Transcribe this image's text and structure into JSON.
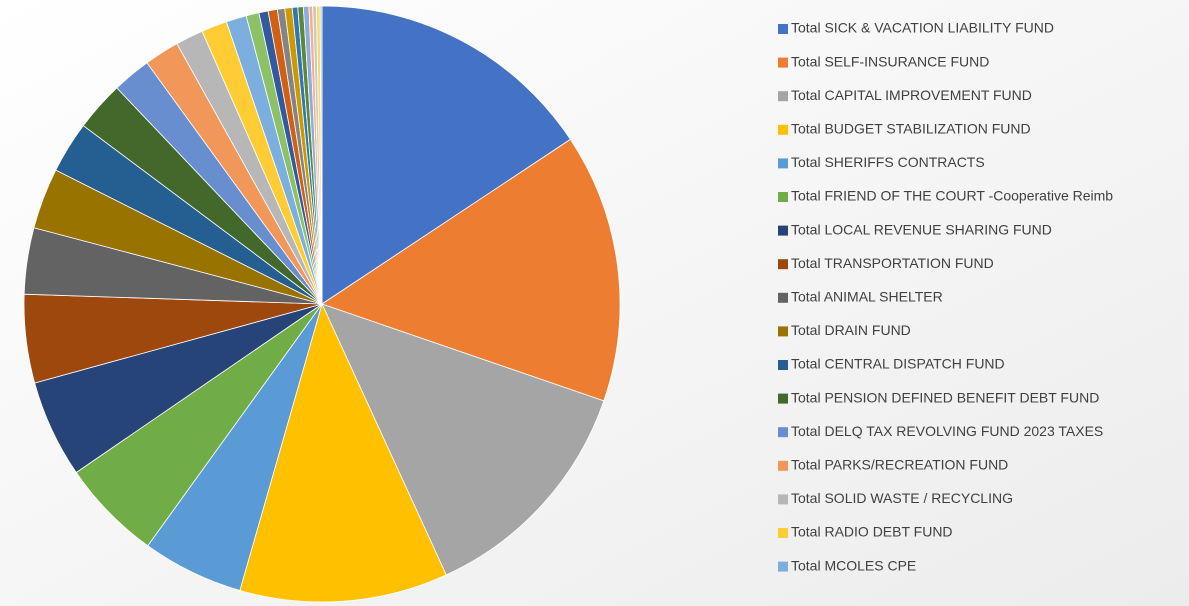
{
  "chart_data": {
    "type": "pie",
    "categories": [
      "Total SICK & VACATION LIABILITY FUND",
      "Total SELF-INSURANCE FUND",
      "Total CAPITAL IMPROVEMENT FUND",
      "Total BUDGET STABILIZATION FUND",
      "Total SHERIFFS CONTRACTS",
      "Total FRIEND OF THE COURT -Cooperative Reimb",
      "Total LOCAL REVENUE SHARING FUND",
      "Total TRANSPORTATION FUND",
      "Total ANIMAL SHELTER",
      "Total DRAIN FUND",
      "Total CENTRAL DISPATCH FUND",
      "Total PENSION DEFINED BENEFIT DEBT FUND",
      "Total DELQ TAX REVOLVING FUND 2023 TAXES",
      "Total PARKS/RECREATION FUND",
      "Total SOLID WASTE / RECYCLING",
      "Total RADIO DEBT FUND",
      "Total MCOLES CPE",
      null,
      null,
      null,
      null,
      null,
      null,
      null,
      null,
      null,
      null,
      null,
      null
    ],
    "values": [
      15.7,
      14.6,
      12.9,
      11.3,
      5.5,
      5.5,
      5.3,
      4.8,
      3.6,
      3.3,
      2.8,
      2.7,
      2.1,
      1.9,
      1.5,
      1.4,
      1.1,
      0.7,
      0.5,
      0.5,
      0.4,
      0.4,
      0.3,
      0.3,
      0.3,
      0.2,
      0.2,
      0.2,
      0.1
    ],
    "colors": [
      "#4472c4",
      "#ed7d31",
      "#a5a5a5",
      "#ffc000",
      "#5b9bd5",
      "#70ad47",
      "#264478",
      "#9e480e",
      "#636363",
      "#997300",
      "#255e91",
      "#43682b",
      "#698ed0",
      "#f1975a",
      "#b7b7b7",
      "#ffcd33",
      "#7cafdd",
      "#8cc168",
      "#335aa1",
      "#d26012",
      "#848484",
      "#cc9a00",
      "#3277b4",
      "#5a8a39",
      "#8faadc",
      "#f4b183",
      "#c9c9c9",
      "#ffd966",
      "#9dc3e6"
    ]
  }
}
